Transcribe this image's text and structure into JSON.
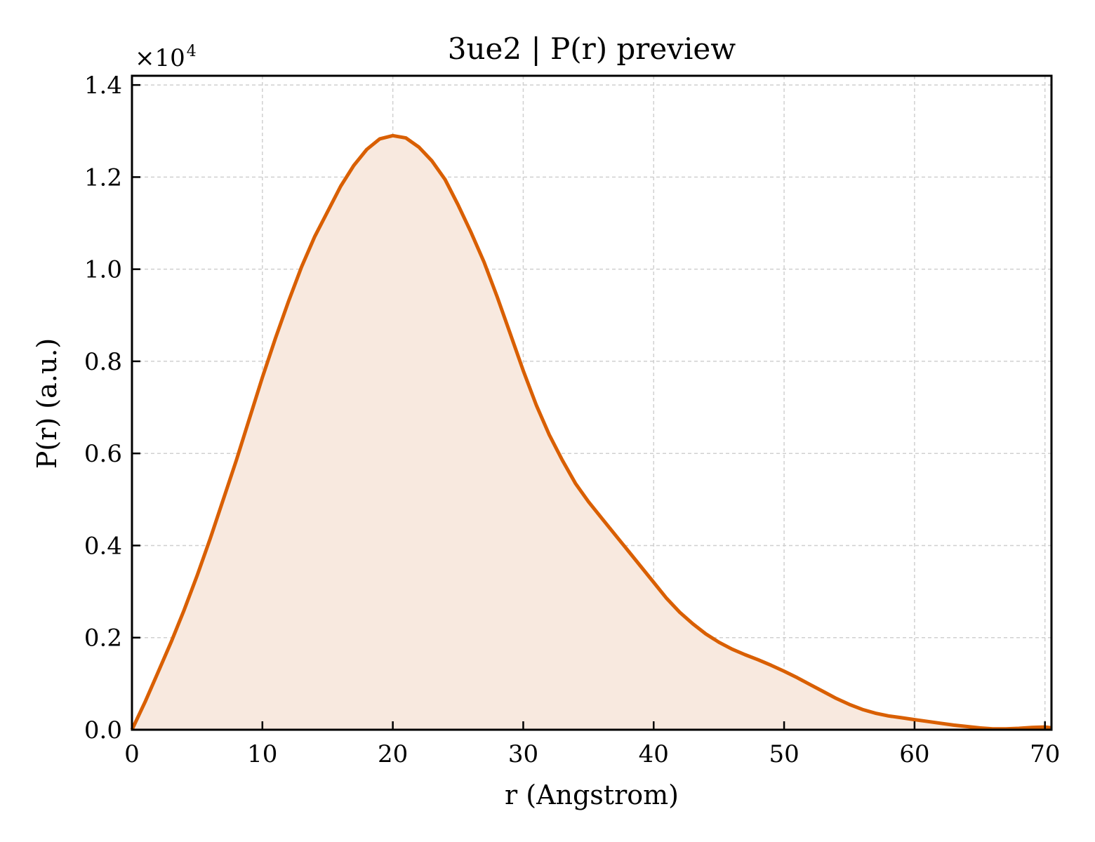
{
  "chart_data": {
    "type": "area",
    "title": "3ue2 | P(r) preview",
    "xlabel": "r (Angstrom)",
    "ylabel": "P(r) (a.u.)",
    "y_multiplier": "×10",
    "y_multiplier_exp": "4",
    "xlim": [
      0,
      70.5
    ],
    "ylim": [
      0,
      1.42
    ],
    "xticks": [
      0,
      10,
      20,
      30,
      40,
      50,
      60,
      70
    ],
    "xtick_labels": [
      "0",
      "10",
      "20",
      "30",
      "40",
      "50",
      "60",
      "70"
    ],
    "yticks": [
      0,
      0.2,
      0.4,
      0.6,
      0.8,
      1.0,
      1.2,
      1.4
    ],
    "ytick_labels": [
      "0.0",
      "0.2",
      "0.4",
      "0.6",
      "0.8",
      "1.0",
      "1.2",
      "1.4"
    ],
    "grid": true,
    "line_color": "#d95f02",
    "fill_color": "#f8e9df",
    "x": [
      0,
      1,
      2,
      3,
      4,
      5,
      6,
      7,
      8,
      9,
      10,
      11,
      12,
      13,
      14,
      15,
      16,
      17,
      18,
      19,
      20,
      21,
      22,
      23,
      24,
      25,
      26,
      27,
      28,
      29,
      30,
      31,
      32,
      33,
      34,
      35,
      36,
      37,
      38,
      39,
      40,
      41,
      42,
      43,
      44,
      45,
      46,
      47,
      48,
      49,
      50,
      51,
      52,
      53,
      54,
      55,
      56,
      57,
      58,
      59,
      60,
      61,
      62,
      63,
      64,
      65,
      66,
      67,
      68,
      69,
      70,
      70.5
    ],
    "y": [
      0.0,
      0.06,
      0.125,
      0.19,
      0.26,
      0.335,
      0.415,
      0.5,
      0.585,
      0.675,
      0.765,
      0.85,
      0.93,
      1.005,
      1.07,
      1.125,
      1.18,
      1.225,
      1.26,
      1.283,
      1.29,
      1.285,
      1.265,
      1.235,
      1.195,
      1.14,
      1.08,
      1.015,
      0.94,
      0.86,
      0.78,
      0.705,
      0.64,
      0.585,
      0.535,
      0.495,
      0.46,
      0.425,
      0.39,
      0.355,
      0.32,
      0.285,
      0.255,
      0.23,
      0.208,
      0.19,
      0.175,
      0.163,
      0.152,
      0.14,
      0.127,
      0.113,
      0.098,
      0.083,
      0.068,
      0.055,
      0.044,
      0.036,
      0.03,
      0.026,
      0.022,
      0.018,
      0.014,
      0.01,
      0.007,
      0.004,
      0.002,
      0.002,
      0.003,
      0.005,
      0.006,
      0.004
    ]
  }
}
